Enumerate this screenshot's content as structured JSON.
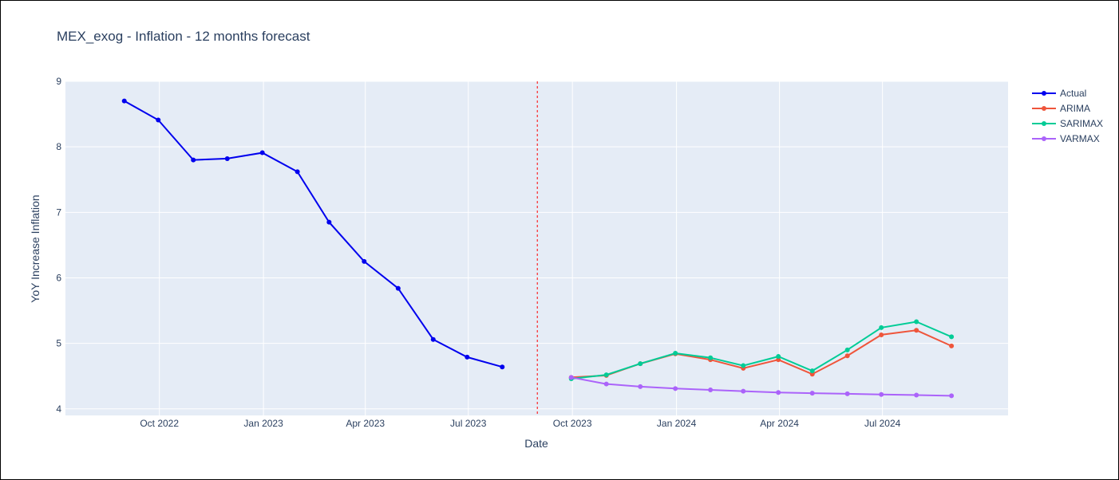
{
  "chart_data": {
    "type": "line",
    "title": "MEX_exog - Inflation -  12 months forecast",
    "xlabel": "Date",
    "ylabel": "YoY Increase Inflation",
    "ylim": [
      3.9,
      9.0
    ],
    "xlim": [
      "2022-07-10",
      "2024-10-20"
    ],
    "y_ticks": [
      4,
      5,
      6,
      7,
      8,
      9
    ],
    "x_ticks": [
      {
        "date": "2022-10-01",
        "label": "Oct 2022"
      },
      {
        "date": "2023-01-01",
        "label": "Jan 2023"
      },
      {
        "date": "2023-04-01",
        "label": "Apr 2023"
      },
      {
        "date": "2023-07-01",
        "label": "Jul 2023"
      },
      {
        "date": "2023-10-01",
        "label": "Oct 2023"
      },
      {
        "date": "2024-01-01",
        "label": "Jan 2024"
      },
      {
        "date": "2024-04-01",
        "label": "Apr 2024"
      },
      {
        "date": "2024-07-01",
        "label": "Jul 2024"
      }
    ],
    "grid": true,
    "legend_position": "top-right",
    "forecast_start_marker": "2023-08-31",
    "series": [
      {
        "name": "Actual",
        "color": "#0000ee",
        "x": [
          "2022-08-31",
          "2022-09-30",
          "2022-10-31",
          "2022-11-30",
          "2022-12-31",
          "2023-01-31",
          "2023-02-28",
          "2023-03-31",
          "2023-04-30",
          "2023-05-31",
          "2023-06-30",
          "2023-07-31",
          "2023-08-31"
        ],
        "values": [
          8.7,
          8.41,
          7.8,
          7.82,
          7.91,
          7.62,
          6.85,
          6.25,
          5.84,
          5.06,
          4.79,
          4.64,
          null
        ]
      },
      {
        "name": "ARIMA",
        "color": "#ef553b",
        "x": [
          "2023-08-31",
          "2023-09-30",
          "2023-10-31",
          "2023-11-30",
          "2023-12-31",
          "2024-01-31",
          "2024-02-29",
          "2024-03-31",
          "2024-04-30",
          "2024-05-31",
          "2024-06-30",
          "2024-07-31",
          "2024-08-31"
        ],
        "values": [
          null,
          4.48,
          4.51,
          4.69,
          4.84,
          4.75,
          4.62,
          4.75,
          4.53,
          4.81,
          5.13,
          5.2,
          4.96
        ]
      },
      {
        "name": "SARIMAX",
        "color": "#00cc96",
        "x": [
          "2023-08-31",
          "2023-09-30",
          "2023-10-31",
          "2023-11-30",
          "2023-12-31",
          "2024-01-31",
          "2024-02-29",
          "2024-03-31",
          "2024-04-30",
          "2024-05-31",
          "2024-06-30",
          "2024-07-31",
          "2024-08-31"
        ],
        "values": [
          null,
          4.46,
          4.52,
          4.69,
          4.85,
          4.78,
          4.66,
          4.8,
          4.58,
          4.9,
          5.24,
          5.33,
          5.1
        ]
      },
      {
        "name": "VARMAX",
        "color": "#ab63fa",
        "x": [
          "2023-08-31",
          "2023-09-30",
          "2023-10-31",
          "2023-11-30",
          "2023-12-31",
          "2024-01-31",
          "2024-02-29",
          "2024-03-31",
          "2024-04-30",
          "2024-05-31",
          "2024-06-30",
          "2024-07-31",
          "2024-08-31"
        ],
        "values": [
          null,
          4.48,
          4.38,
          4.34,
          4.31,
          4.29,
          4.27,
          4.25,
          4.24,
          4.23,
          4.22,
          4.21,
          4.2
        ]
      }
    ]
  }
}
